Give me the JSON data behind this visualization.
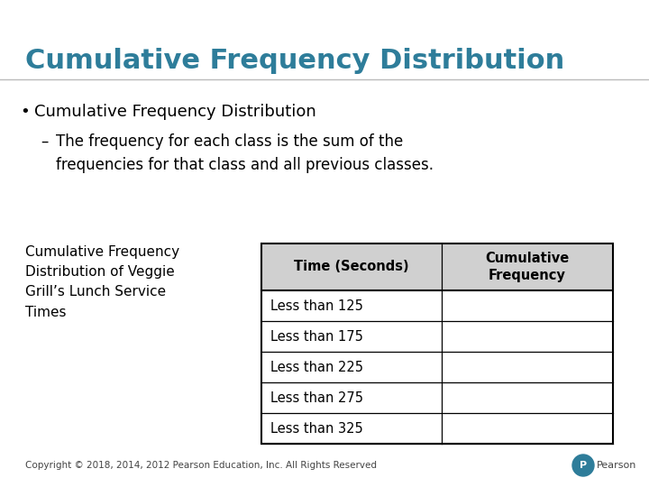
{
  "title": "Cumulative Frequency Distribution",
  "title_color": "#2E7D9A",
  "bullet_text": "Cumulative Frequency Distribution",
  "sub_bullet_text": "The frequency for each class is the sum of the\nfrequencies for that class and all previous classes.",
  "table_caption": "Cumulative Frequency\nDistribution of Veggie\nGrill’s Lunch Service\nTimes",
  "table_header": [
    "Time (Seconds)",
    "Cumulative\nFrequency"
  ],
  "table_rows": [
    [
      "Less than 125",
      ""
    ],
    [
      "Less than 175",
      ""
    ],
    [
      "Less than 225",
      ""
    ],
    [
      "Less than 275",
      ""
    ],
    [
      "Less than 325",
      ""
    ]
  ],
  "footer_text": "Copyright © 2018, 2014, 2012 Pearson Education, Inc. All Rights Reserved",
  "bg_color": "#FFFFFF",
  "table_header_bg": "#D0D0D0",
  "table_border_color": "#000000",
  "body_text_color": "#000000",
  "footer_color": "#444444",
  "pearson_color": "#2E7D9A"
}
